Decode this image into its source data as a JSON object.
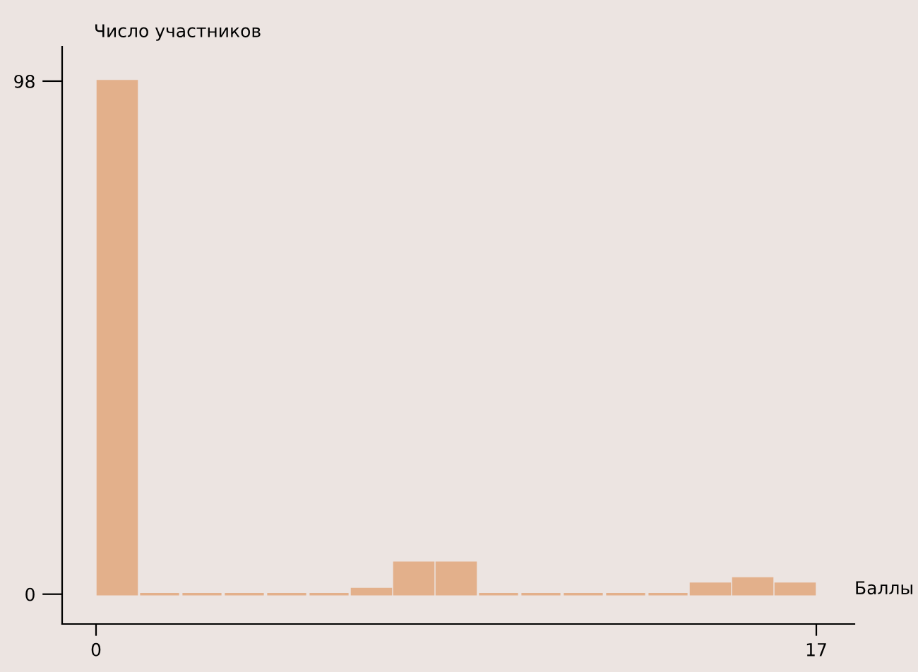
{
  "chart_data": {
    "type": "histogram",
    "ylabel": "Число участников",
    "xlabel": "Баллы",
    "bins": [
      0,
      1,
      2,
      3,
      4,
      5,
      6,
      7,
      8,
      9,
      10,
      11,
      12,
      13,
      14,
      15,
      16,
      17
    ],
    "values": [
      98,
      0,
      0,
      0,
      0,
      0,
      1,
      6,
      6,
      0,
      0,
      0,
      0,
      0,
      2,
      3,
      2
    ],
    "color": "#e3b08b",
    "xlim": [
      -0.8,
      17.9
    ],
    "ylim": [
      -5.7,
      104.6
    ],
    "xticks": [
      0,
      17
    ],
    "yticks": [
      0,
      98
    ],
    "grid": false,
    "legend": false
  }
}
